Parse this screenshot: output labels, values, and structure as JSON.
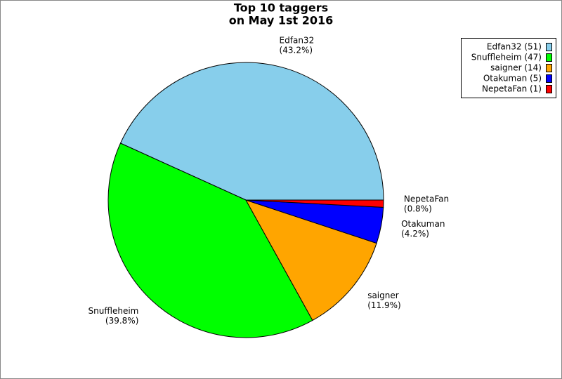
{
  "chart_data": {
    "type": "pie",
    "title": [
      "Top 10 taggers",
      "on May 1st 2016"
    ],
    "categories": [
      "Edfan32",
      "Snuffleheim",
      "saigner",
      "Otakuman",
      "NepetaFan"
    ],
    "values": [
      51,
      47,
      14,
      5,
      1
    ],
    "percent_labels": [
      "(43.2%)",
      "(39.8%)",
      "(11.9%)",
      "(4.2%)",
      "(0.8%)"
    ],
    "legend_labels": [
      "Edfan32 (51)",
      "Snuffleheim (47)",
      "saigner (14)",
      "Otakuman (5)",
      "NepetaFan (1)"
    ],
    "colors": [
      "#87ceeb",
      "#00ff00",
      "#ffa500",
      "#0000ff",
      "#ff0000"
    ],
    "legend": "upper right"
  }
}
